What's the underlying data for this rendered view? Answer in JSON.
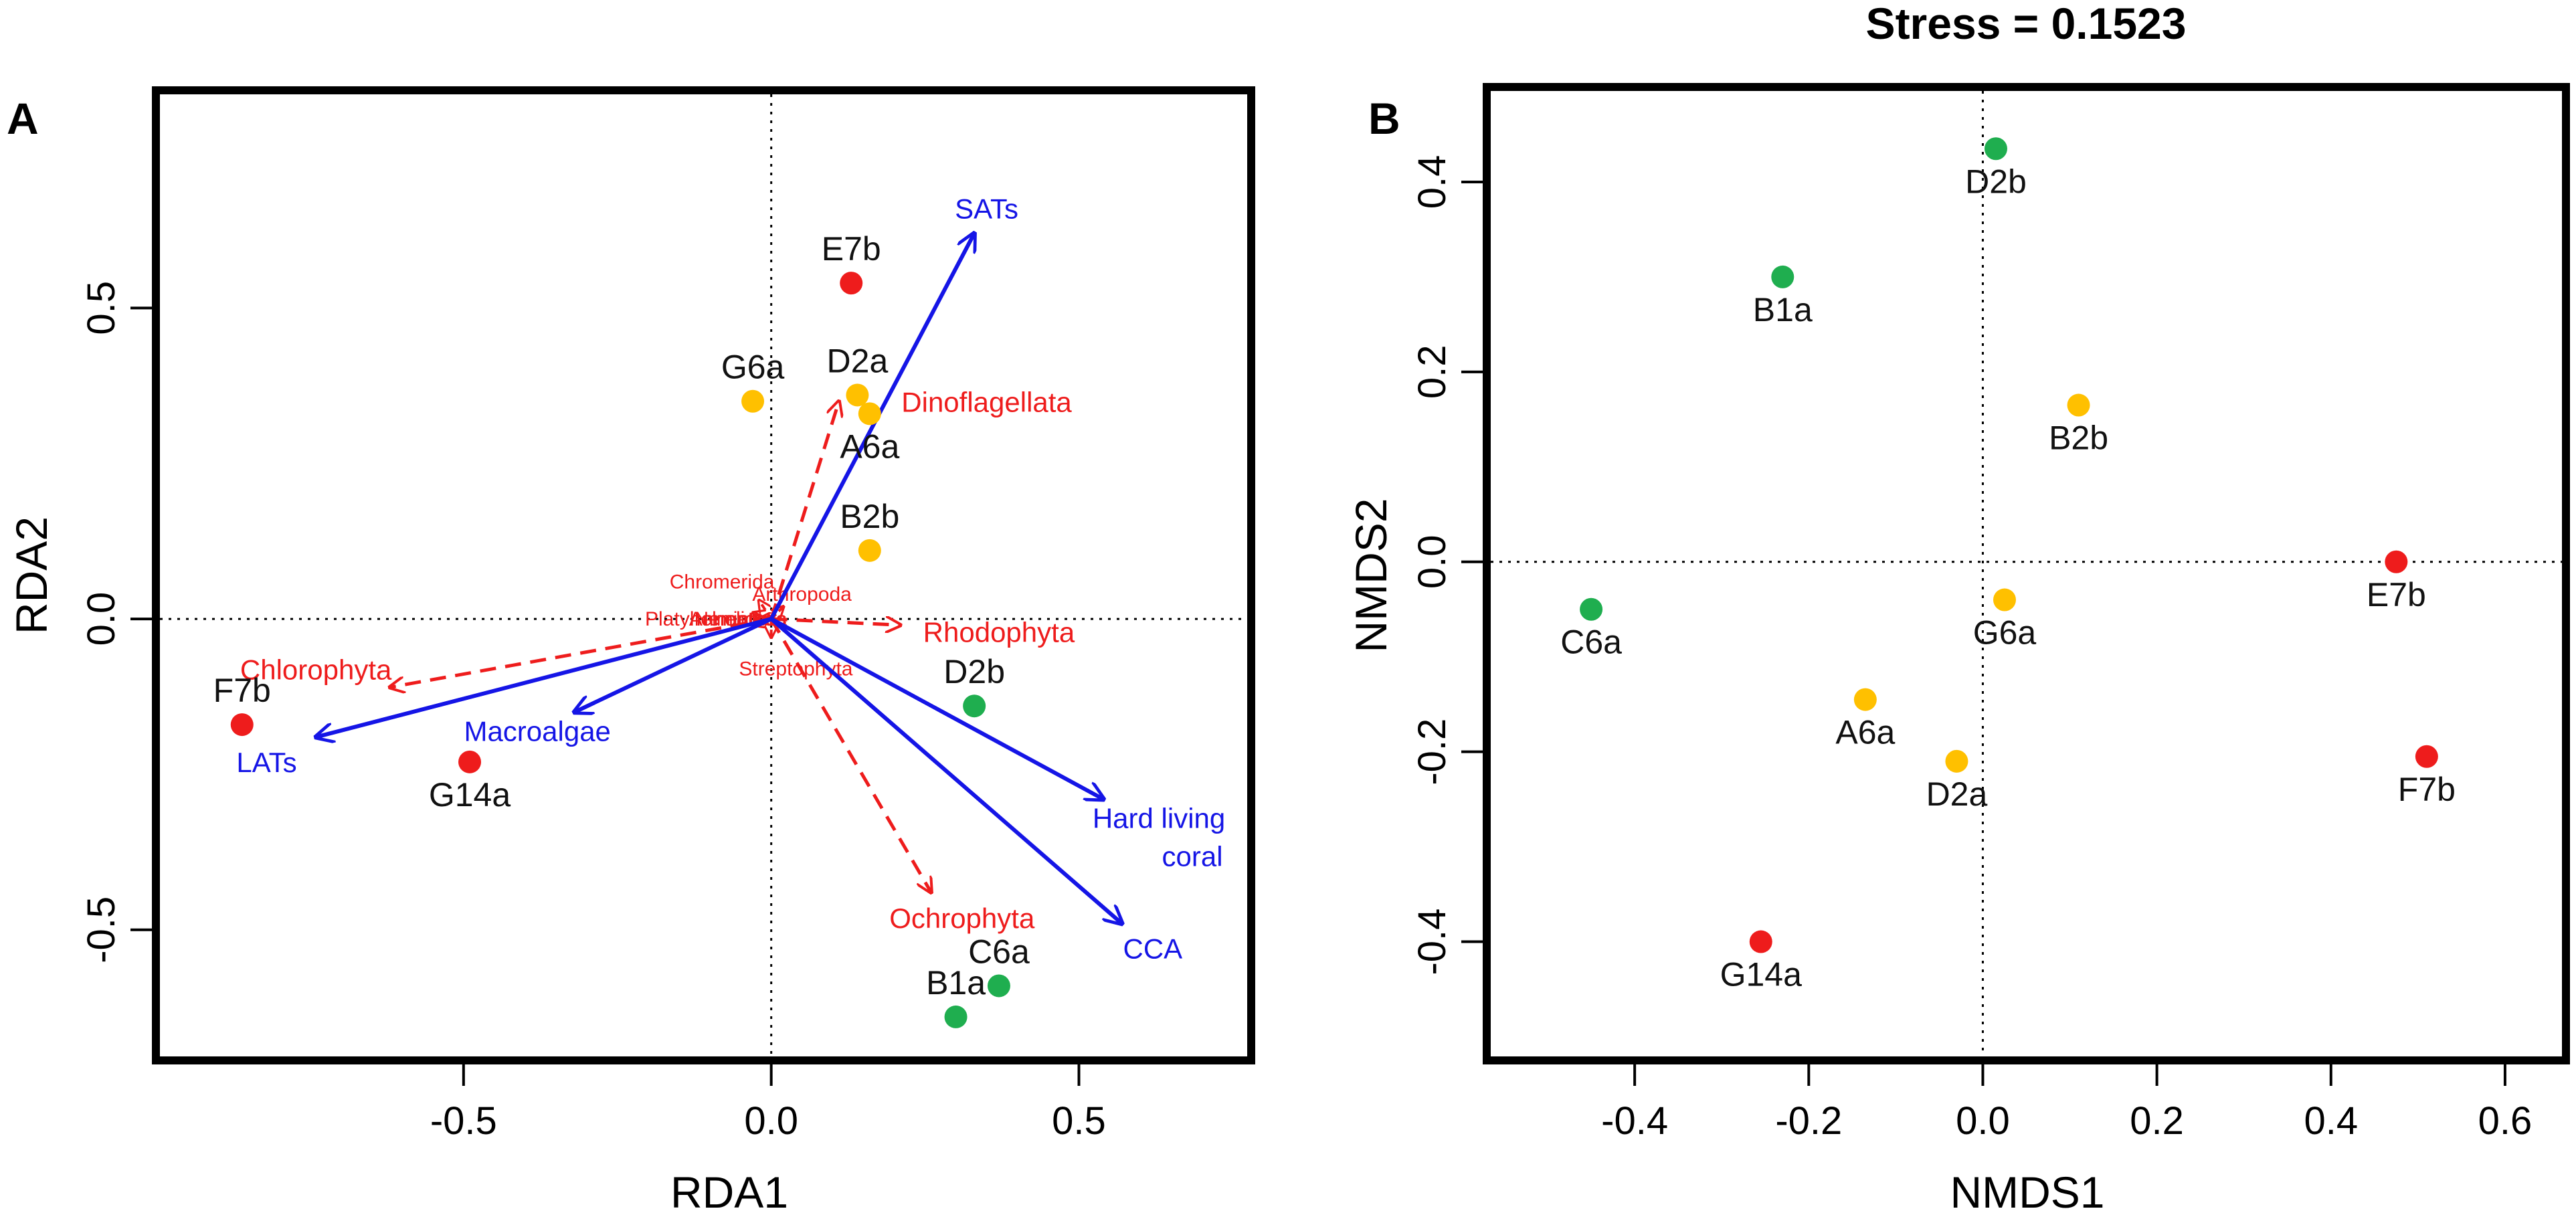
{
  "figure": {
    "stress_label": "Stress = 0.1523"
  },
  "colors": {
    "red": "#ee1c1c",
    "orange": "#ffc000",
    "green": "#1fae4f",
    "blue": "#1515e6",
    "arrow_red": "#ee1c1c",
    "frame": "#000000"
  },
  "chart_data": [
    {
      "panel": "A",
      "type": "scatter",
      "title": "",
      "xlabel": "RDA1",
      "ylabel": "RDA2",
      "xlim": [
        -1.0,
        0.78
      ],
      "ylim": [
        -0.71,
        0.85
      ],
      "xticks": [
        -0.5,
        0.0,
        0.5
      ],
      "xtick_labels": [
        "-0.5",
        "0.0",
        "0.5"
      ],
      "yticks": [
        -0.5,
        0.0,
        0.5
      ],
      "ytick_labels": [
        "-0.5",
        "0.0",
        "0.5"
      ],
      "reference_lines": {
        "x": 0,
        "y": 0
      },
      "sites": [
        {
          "label": "E7b",
          "x": 0.13,
          "y": 0.54,
          "group": "red",
          "label_pos": "above"
        },
        {
          "label": "G6a",
          "x": -0.03,
          "y": 0.35,
          "group": "orange",
          "label_pos": "above"
        },
        {
          "label": "D2a",
          "x": 0.14,
          "y": 0.36,
          "group": "orange",
          "label_pos": "above"
        },
        {
          "label": "A6a",
          "x": 0.16,
          "y": 0.33,
          "group": "orange",
          "label_pos": "below"
        },
        {
          "label": "B2b",
          "x": 0.16,
          "y": 0.11,
          "group": "orange",
          "label_pos": "above"
        },
        {
          "label": "D2b",
          "x": 0.33,
          "y": -0.14,
          "group": "green",
          "label_pos": "above"
        },
        {
          "label": "F7b",
          "x": -0.86,
          "y": -0.17,
          "group": "red",
          "label_pos": "above"
        },
        {
          "label": "G14a",
          "x": -0.49,
          "y": -0.23,
          "group": "red",
          "label_pos": "below"
        },
        {
          "label": "C6a",
          "x": 0.37,
          "y": -0.59,
          "group": "green",
          "label_pos": "above"
        },
        {
          "label": "B1a",
          "x": 0.3,
          "y": -0.64,
          "group": "green",
          "label_pos": "above"
        }
      ],
      "environmental_vectors": [
        {
          "label": "SATs",
          "x": 0.33,
          "y": 0.62,
          "label_x": 0.35,
          "label_y": 0.66
        },
        {
          "label": "LATs",
          "x": -0.74,
          "y": -0.19,
          "label_x": -0.82,
          "label_y": -0.23
        },
        {
          "label": "Macroalgae",
          "x": -0.32,
          "y": -0.15,
          "label_x": -0.38,
          "label_y": -0.18
        },
        {
          "label": "Hard living",
          "label2": "coral",
          "x": 0.54,
          "y": -0.29,
          "label_x": 0.63,
          "label_y": -0.32
        },
        {
          "label": "CCA",
          "x": 0.57,
          "y": -0.49,
          "label_x": 0.62,
          "label_y": -0.53
        }
      ],
      "species_vectors": [
        {
          "label": "Dinoflagellata",
          "x": 0.11,
          "y": 0.35,
          "label_x": 0.35,
          "label_y": 0.35,
          "size": "large"
        },
        {
          "label": "Rhodophyta",
          "x": 0.21,
          "y": -0.01,
          "label_x": 0.37,
          "label_y": -0.02,
          "size": "large"
        },
        {
          "label": "Chlorophyta",
          "x": -0.62,
          "y": -0.11,
          "label_x": -0.74,
          "label_y": -0.08,
          "size": "large"
        },
        {
          "label": "Ochrophyta",
          "x": 0.26,
          "y": -0.44,
          "label_x": 0.31,
          "label_y": -0.48,
          "size": "large"
        },
        {
          "label": "Chromerida",
          "x": -0.02,
          "y": 0.03,
          "label_x": -0.08,
          "label_y": 0.06,
          "size": "small"
        },
        {
          "label": "Arthropoda",
          "x": 0.02,
          "y": 0.02,
          "label_x": 0.05,
          "label_y": 0.04,
          "size": "small"
        },
        {
          "label": "Annelida",
          "x": -0.03,
          "y": 0.01,
          "label_x": -0.07,
          "label_y": 0.0,
          "size": "small"
        },
        {
          "label": "Nematoda",
          "x": -0.02,
          "y": 0.0,
          "label_x": -0.05,
          "label_y": 0.0,
          "size": "small"
        },
        {
          "label": "Platyhelminthes",
          "x": -0.03,
          "y": -0.01,
          "label_x": -0.09,
          "label_y": 0.0,
          "size": "small"
        },
        {
          "label": "Streptophyta",
          "x": 0.0,
          "y": -0.03,
          "label_x": 0.04,
          "label_y": -0.08,
          "size": "small"
        }
      ]
    },
    {
      "panel": "B",
      "type": "scatter",
      "title": "Stress = 0.1523",
      "xlabel": "NMDS1",
      "ylabel": "NMDS2",
      "xlim": [
        -0.57,
        0.67
      ],
      "ylim": [
        -0.525,
        0.5
      ],
      "xticks": [
        -0.4,
        -0.2,
        0.0,
        0.2,
        0.4,
        0.6
      ],
      "xtick_labels": [
        "-0.4",
        "-0.2",
        "0.0",
        "0.2",
        "0.4",
        "0.6"
      ],
      "yticks": [
        -0.4,
        -0.2,
        0.0,
        0.2,
        0.4
      ],
      "ytick_labels": [
        "-0.4",
        "-0.2",
        "0.0",
        "0.2",
        "0.4"
      ],
      "reference_lines": {
        "x": 0,
        "y": 0
      },
      "sites": [
        {
          "label": "D2b",
          "x": 0.015,
          "y": 0.435,
          "group": "green",
          "label_pos": "below"
        },
        {
          "label": "B1a",
          "x": -0.23,
          "y": 0.3,
          "group": "green",
          "label_pos": "below"
        },
        {
          "label": "B2b",
          "x": 0.11,
          "y": 0.165,
          "group": "orange",
          "label_pos": "below"
        },
        {
          "label": "E7b",
          "x": 0.475,
          "y": 0.0,
          "group": "red",
          "label_pos": "below"
        },
        {
          "label": "C6a",
          "x": -0.45,
          "y": -0.05,
          "group": "green",
          "label_pos": "below"
        },
        {
          "label": "G6a",
          "x": 0.025,
          "y": -0.04,
          "group": "orange",
          "label_pos": "below"
        },
        {
          "label": "A6a",
          "x": -0.135,
          "y": -0.145,
          "group": "orange",
          "label_pos": "below"
        },
        {
          "label": "D2a",
          "x": -0.03,
          "y": -0.21,
          "group": "orange",
          "label_pos": "below"
        },
        {
          "label": "F7b",
          "x": 0.51,
          "y": -0.205,
          "group": "red",
          "label_pos": "below"
        },
        {
          "label": "G14a",
          "x": -0.255,
          "y": -0.4,
          "group": "red",
          "label_pos": "below"
        }
      ]
    }
  ],
  "panels": {
    "A": {
      "tag": "A"
    },
    "B": {
      "tag": "B"
    }
  }
}
